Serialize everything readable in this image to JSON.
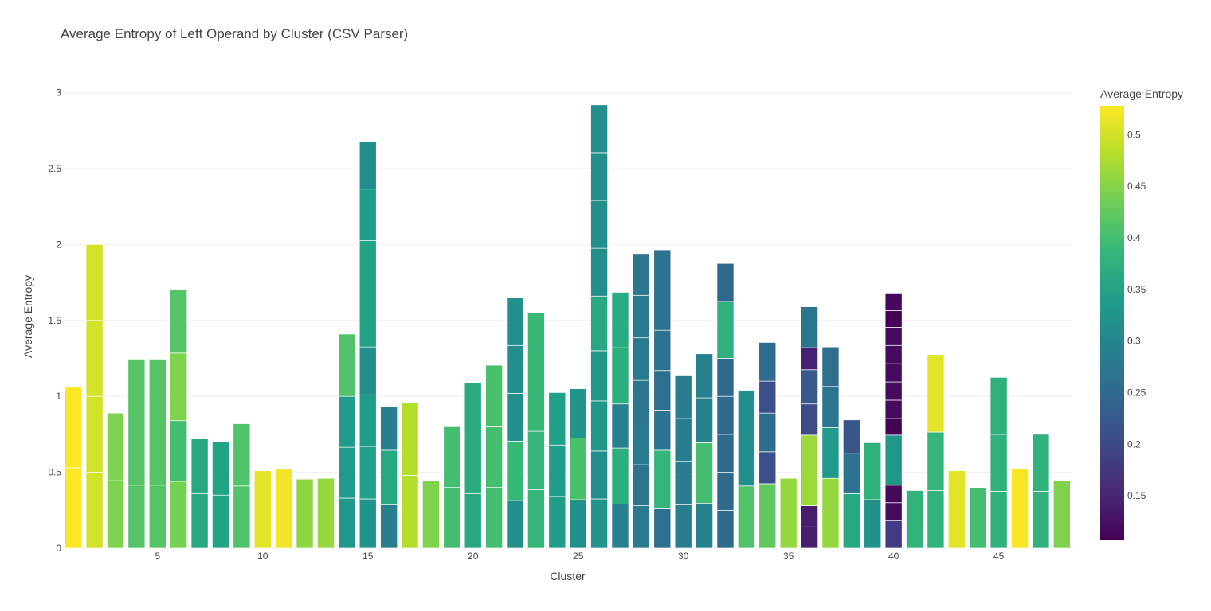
{
  "chart_data": {
    "type": "bar",
    "title": "Average Entropy of Left Operand by Cluster (CSV Parser)",
    "xlabel": "Cluster",
    "ylabel": "Average Entropy",
    "stacked": true,
    "xlim": [
      0.5,
      48.5
    ],
    "ylim": [
      0,
      3.05
    ],
    "x_ticks": [
      5,
      10,
      15,
      20,
      25,
      30,
      35,
      40,
      45
    ],
    "y_ticks": [
      0,
      0.5,
      1,
      1.5,
      2,
      2.5,
      3
    ],
    "y_tick_labels": [
      "0",
      "0.5",
      "1",
      "1.5",
      "2",
      "2.5",
      "3"
    ],
    "x_tick_labels": [
      "5",
      "10",
      "15",
      "20",
      "25",
      "30",
      "35",
      "40",
      "45"
    ],
    "grid": true,
    "colorscale": "Viridis",
    "colorbar": {
      "title": "Average Entropy",
      "range": [
        0.107,
        0.528
      ],
      "ticks": [
        0.15,
        0.2,
        0.25,
        0.3,
        0.35,
        0.4,
        0.45,
        0.5
      ],
      "tick_labels": [
        "0.15",
        "0.2",
        "0.25",
        "0.3",
        "0.35",
        "0.4",
        "0.45",
        "0.5"
      ]
    },
    "clusters": [
      {
        "cluster": 1,
        "segments": [
          0.53,
          0.53
        ]
      },
      {
        "cluster": 2,
        "segments": [
          0.5,
          0.5,
          0.5,
          0.5
        ]
      },
      {
        "cluster": 3,
        "segments": [
          0.445,
          0.445
        ]
      },
      {
        "cluster": 4,
        "segments": [
          0.415,
          0.415,
          0.415
        ]
      },
      {
        "cluster": 5,
        "segments": [
          0.415,
          0.415,
          0.415
        ]
      },
      {
        "cluster": 6,
        "segments": [
          0.44,
          0.4,
          0.445,
          0.415
        ]
      },
      {
        "cluster": 7,
        "segments": [
          0.36,
          0.36
        ]
      },
      {
        "cluster": 8,
        "segments": [
          0.35,
          0.35
        ]
      },
      {
        "cluster": 9,
        "segments": [
          0.41,
          0.41
        ]
      },
      {
        "cluster": 10,
        "segments": [
          0.51
        ]
      },
      {
        "cluster": 11,
        "segments": [
          0.52
        ]
      },
      {
        "cluster": 12,
        "segments": [
          0.455
        ]
      },
      {
        "cluster": 13,
        "segments": [
          0.46
        ]
      },
      {
        "cluster": 14,
        "segments": [
          0.33,
          0.335,
          0.335,
          0.41
        ]
      },
      {
        "cluster": 15,
        "segments": [
          0.325,
          0.345,
          0.34,
          0.315,
          0.35,
          0.35,
          0.34,
          0.315
        ]
      },
      {
        "cluster": 16,
        "segments": [
          0.285,
          0.36,
          0.285
        ]
      },
      {
        "cluster": 17,
        "segments": [
          0.48,
          0.48
        ]
      },
      {
        "cluster": 18,
        "segments": [
          0.445
        ]
      },
      {
        "cluster": 19,
        "segments": [
          0.4,
          0.4
        ]
      },
      {
        "cluster": 20,
        "segments": [
          0.36,
          0.365,
          0.365
        ]
      },
      {
        "cluster": 21,
        "segments": [
          0.4,
          0.4,
          0.405
        ]
      },
      {
        "cluster": 22,
        "segments": [
          0.315,
          0.39,
          0.315,
          0.315,
          0.315
        ]
      },
      {
        "cluster": 23,
        "segments": [
          0.385,
          0.385,
          0.39,
          0.39
        ]
      },
      {
        "cluster": 24,
        "segments": [
          0.34,
          0.34,
          0.345
        ]
      },
      {
        "cluster": 25,
        "segments": [
          0.32,
          0.405,
          0.325
        ]
      },
      {
        "cluster": 26,
        "segments": [
          0.325,
          0.315,
          0.33,
          0.33,
          0.36,
          0.315,
          0.315,
          0.315,
          0.315
        ]
      },
      {
        "cluster": 27,
        "segments": [
          0.29,
          0.37,
          0.29,
          0.37,
          0.365
        ]
      },
      {
        "cluster": 28,
        "segments": [
          0.28,
          0.27,
          0.28,
          0.275,
          0.28,
          0.28,
          0.275
        ]
      },
      {
        "cluster": 29,
        "segments": [
          0.26,
          0.385,
          0.265,
          0.26,
          0.265,
          0.265,
          0.265
        ]
      },
      {
        "cluster": 30,
        "segments": [
          0.285,
          0.285,
          0.285,
          0.285
        ]
      },
      {
        "cluster": 31,
        "segments": [
          0.295,
          0.4,
          0.295,
          0.29
        ]
      },
      {
        "cluster": 32,
        "segments": [
          0.25,
          0.25,
          0.25,
          0.25,
          0.25,
          0.375,
          0.25
        ]
      },
      {
        "cluster": 33,
        "segments": [
          0.41,
          0.315,
          0.315
        ]
      },
      {
        "cluster": 34,
        "segments": [
          0.425,
          0.21,
          0.255,
          0.21,
          0.255
        ]
      },
      {
        "cluster": 35,
        "segments": [
          0.46
        ]
      },
      {
        "cluster": 36,
        "segments": [
          0.14,
          0.14,
          0.465,
          0.205,
          0.225,
          0.145,
          0.27
        ]
      },
      {
        "cluster": 37,
        "segments": [
          0.46,
          0.335,
          0.27,
          0.26
        ]
      },
      {
        "cluster": 38,
        "segments": [
          0.36,
          0.265,
          0.22
        ]
      },
      {
        "cluster": 39,
        "segments": [
          0.32,
          0.375
        ]
      },
      {
        "cluster": 40,
        "segments": [
          0.18,
          0.12,
          0.115,
          0.33,
          0.11,
          0.12,
          0.12,
          0.12,
          0.12,
          0.12,
          0.11,
          0.115
        ]
      },
      {
        "cluster": 41,
        "segments": [
          0.38
        ]
      },
      {
        "cluster": 42,
        "segments": [
          0.38,
          0.385,
          0.51
        ]
      },
      {
        "cluster": 43,
        "segments": [
          0.51
        ]
      },
      {
        "cluster": 44,
        "segments": [
          0.4
        ]
      },
      {
        "cluster": 45,
        "segments": [
          0.375,
          0.375,
          0.375
        ]
      },
      {
        "cluster": 46,
        "segments": [
          0.525
        ]
      },
      {
        "cluster": 47,
        "segments": [
          0.375,
          0.375
        ]
      },
      {
        "cluster": 48,
        "segments": [
          0.445
        ]
      }
    ]
  }
}
